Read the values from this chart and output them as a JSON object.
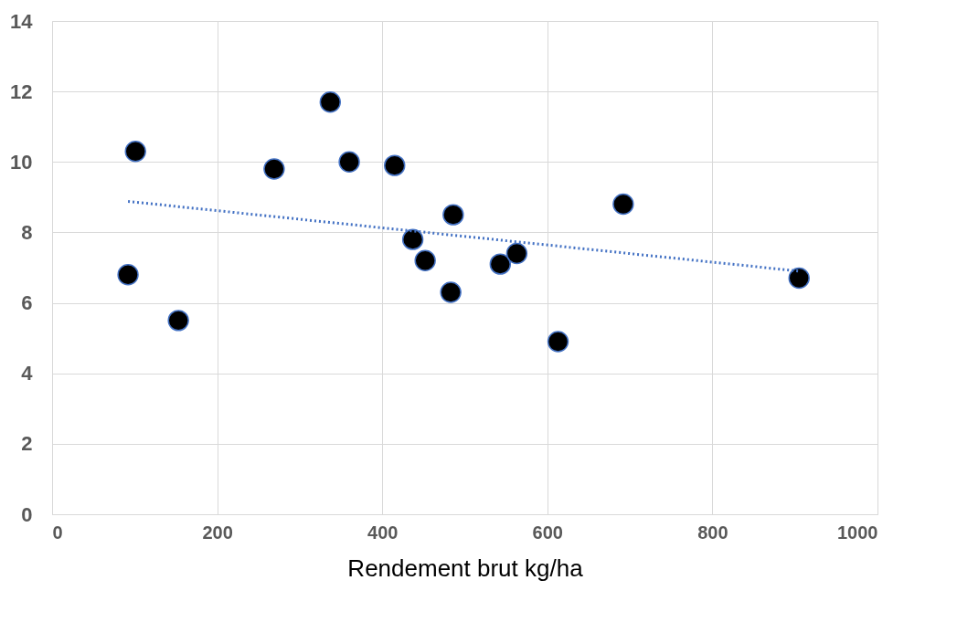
{
  "chart_data": {
    "type": "scatter",
    "xlabel": "Rendement brut kg/ha",
    "xlim": [
      0,
      1000
    ],
    "xticks": [
      0,
      200,
      400,
      600,
      800,
      1000
    ],
    "ylim": [
      0,
      14
    ],
    "yticks": [
      0,
      2,
      4,
      6,
      8,
      10,
      12,
      14
    ],
    "grid": true,
    "series": [
      {
        "color": "#000000",
        "marker": "circle",
        "x": [
          101,
          92,
          153,
          269,
          337,
          360,
          415,
          437,
          452,
          486,
          483,
          543,
          563,
          613,
          692,
          905
        ],
        "values": [
          10.3,
          6.8,
          5.5,
          9.8,
          11.7,
          10.0,
          9.9,
          7.8,
          7.2,
          8.5,
          6.3,
          7.1,
          7.4,
          4.9,
          8.8,
          6.7
        ]
      },
      {
        "type": "line",
        "marker": "none",
        "color": "#4472c4",
        "line_style": "dotted",
        "x": [
          92,
          905
        ],
        "values": [
          8.88,
          6.9
        ]
      }
    ]
  }
}
